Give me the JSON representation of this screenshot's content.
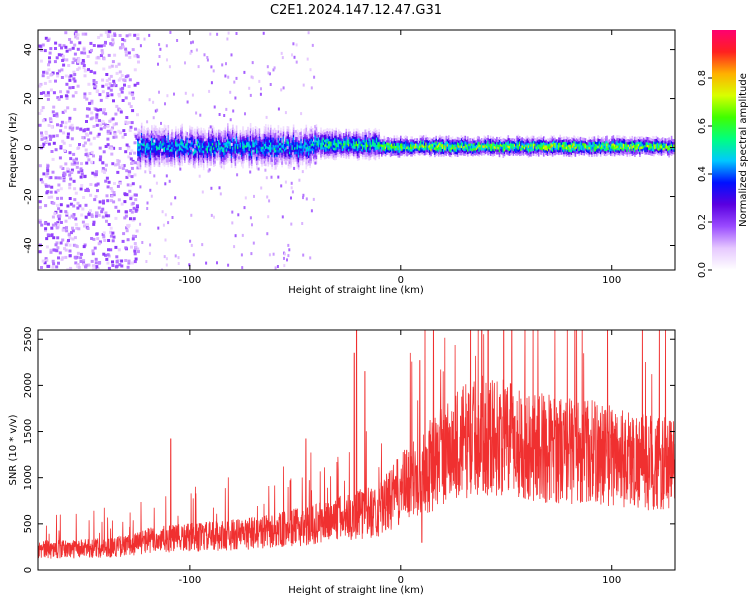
{
  "title": "C2E1.2024.147.12.47.G31",
  "chart_data": [
    {
      "type": "heatmap",
      "xlabel": "Height of straight line (km)",
      "ylabel": "Frequency (Hz)",
      "xlim": [
        -172,
        130
      ],
      "ylim": [
        -50,
        48
      ],
      "xticks": [
        -100,
        0,
        100
      ],
      "yticks": [
        -40,
        -20,
        0,
        20,
        40
      ],
      "colorbar": {
        "label": "Normalized spectral amplitude",
        "range": [
          0.0,
          1.0
        ],
        "ticks": [
          0.0,
          0.2,
          0.4,
          0.6,
          0.8
        ],
        "colormap": [
          "#ffffff",
          "#e6c8ff",
          "#9a4bff",
          "#5a00e0",
          "#0010ff",
          "#00c8ff",
          "#00ff80",
          "#40ff00",
          "#d8ff00",
          "#ffb000",
          "#ff2020",
          "#ff0070"
        ]
      },
      "regions": [
        {
          "x_range": [
            -172,
            -125
          ],
          "band": "broad noise scatter",
          "center_hz": 0,
          "amplitude": 0.15
        },
        {
          "x_range": [
            -125,
            -40
          ],
          "band": "wide",
          "center_hz": 1,
          "half_width_hz": 6,
          "amplitude": 0.35
        },
        {
          "x_range": [
            -40,
            -10
          ],
          "band": "narrowing",
          "center_hz": 2,
          "half_width_hz": 4,
          "amplitude": 0.45
        },
        {
          "x_range": [
            -10,
            130
          ],
          "band": "narrow",
          "center_hz": 1,
          "half_width_hz": 2,
          "amplitude": 0.55
        }
      ]
    },
    {
      "type": "line",
      "xlabel": "Height of straight line (km)",
      "ylabel": "SNR (10 * v/v)",
      "xlim": [
        -172,
        130
      ],
      "ylim": [
        0,
        2600
      ],
      "xticks": [
        -100,
        0,
        100
      ],
      "yticks": [
        0,
        500,
        1000,
        1500,
        2000,
        2500
      ],
      "color": "#f03030",
      "envelope_x": [
        -172,
        -150,
        -130,
        -120,
        -100,
        -80,
        -60,
        -40,
        -30,
        -20,
        -10,
        0,
        10,
        20,
        30,
        40,
        50,
        60,
        70,
        80,
        90,
        100,
        110,
        120,
        130
      ],
      "envelope_y": [
        220,
        230,
        260,
        320,
        350,
        380,
        420,
        500,
        560,
        600,
        650,
        870,
        1050,
        1250,
        1400,
        1470,
        1420,
        1360,
        1320,
        1300,
        1280,
        1250,
        1200,
        1160,
        1130
      ],
      "spikes": [
        {
          "x": -109,
          "y": 1420
        },
        {
          "x": -21,
          "y": 2600
        },
        {
          "x": -22,
          "y": 2350
        },
        {
          "x": -17,
          "y": 2150
        },
        {
          "x": -45,
          "y": 1420
        },
        {
          "x": 9,
          "y": 2270
        },
        {
          "x": 10,
          "y": 300
        },
        {
          "x": 40,
          "y": 1800
        }
      ]
    }
  ]
}
